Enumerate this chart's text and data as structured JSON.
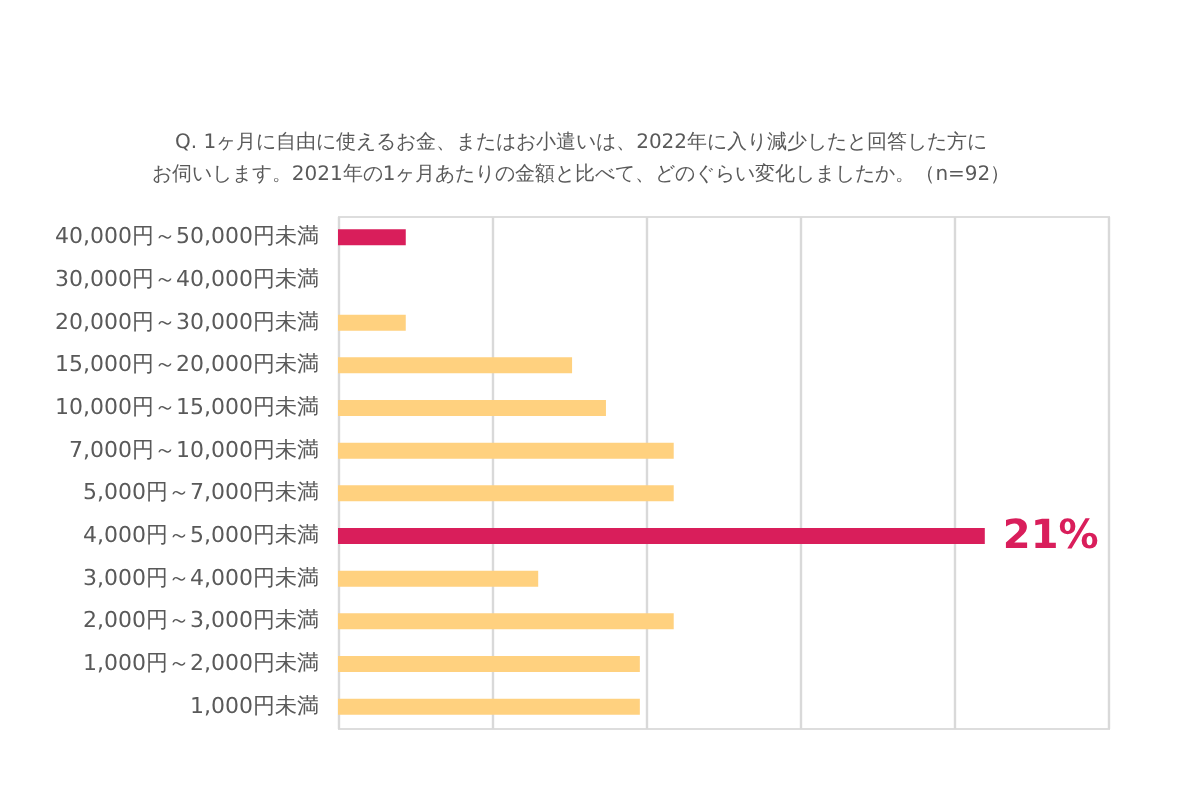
{
  "chart_data": {
    "type": "bar",
    "orientation": "horizontal",
    "title": "Q. 1ヶ月に自由に使えるお金、またはお小遣いは、2022年に入り減少したと回答した方に",
    "subtitle": "お伺いします。2021年の1ヶ月あたりの金額と比べて、どのぐらい変化しましたか。（n=92）",
    "categories": [
      "40,000円～50,000円未満",
      "30,000円～40,000円未満",
      "20,000円～30,000円未満",
      "15,000円～20,000円未満",
      "10,000円～15,000円未満",
      "7,000円～10,000円未満",
      "5,000円～7,000円未満",
      "4,000円～5,000円未満",
      "3,000円～4,000円未満",
      "2,000円～3,000円未満",
      "1,000円～2,000円未満",
      "1,000円未満"
    ],
    "values": [
      2.2,
      0,
      2.2,
      7.6,
      8.7,
      10.9,
      10.9,
      21,
      6.5,
      10.9,
      9.8,
      9.8
    ],
    "colors": [
      "#d91e5b",
      "#ffd17f",
      "#ffd17f",
      "#ffd17f",
      "#ffd17f",
      "#ffd17f",
      "#ffd17f",
      "#d91e5b",
      "#ffd17f",
      "#ffd17f",
      "#ffd17f",
      "#ffd17f"
    ],
    "value_labels": [
      null,
      null,
      null,
      null,
      null,
      null,
      null,
      "21%",
      null,
      null,
      null,
      null
    ],
    "xlim": [
      0,
      25
    ],
    "xticks": [
      {
        "value": 0,
        "label": null
      },
      {
        "value": 5,
        "label": null
      },
      {
        "value": 10,
        "label": null
      },
      {
        "value": 15,
        "label": null
      },
      {
        "value": 20,
        "label": null
      },
      {
        "value": 25,
        "label": null
      }
    ],
    "grid": "x",
    "tick_labels": "y"
  }
}
